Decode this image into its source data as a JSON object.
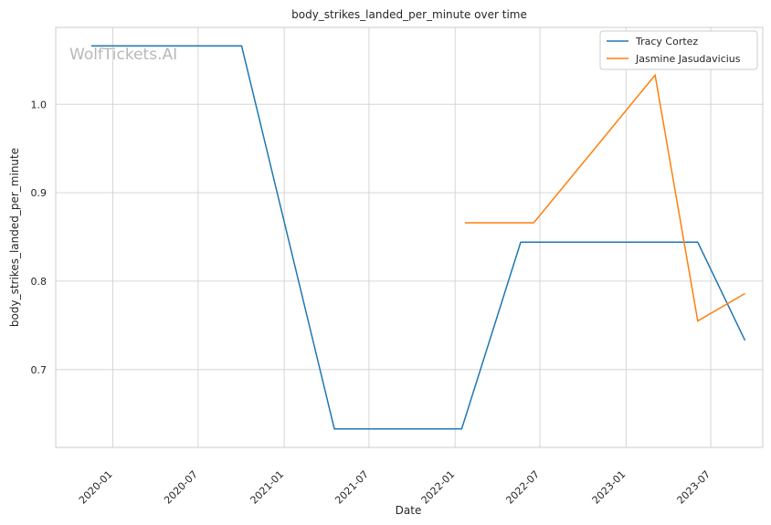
{
  "chart_data": {
    "type": "line",
    "title": "body_strikes_landed_per_minute over time",
    "xlabel": "Date",
    "ylabel": "body_strikes_landed_per_minute",
    "x_ticks": [
      "2020-01",
      "2020-07",
      "2021-01",
      "2021-07",
      "2022-01",
      "2022-07",
      "2023-01",
      "2023-07"
    ],
    "y_ticks": [
      "0.7",
      "0.8",
      "0.9",
      "1.0"
    ],
    "xlim": [
      "2019-09-01",
      "2023-10-20"
    ],
    "ylim": [
      0.612,
      1.087
    ],
    "grid": true,
    "legend_position": "top-right",
    "watermark": "WolfTickets.AI",
    "series": [
      {
        "name": "Tracy Cortez",
        "color": "#1f77b4",
        "points": [
          {
            "x": "2019-11-16",
            "y": 1.066
          },
          {
            "x": "2020-10-02",
            "y": 1.066
          },
          {
            "x": "2021-04-18",
            "y": 0.633
          },
          {
            "x": "2022-01-15",
            "y": 0.633
          },
          {
            "x": "2022-05-21",
            "y": 0.844
          },
          {
            "x": "2023-06-03",
            "y": 0.844
          },
          {
            "x": "2023-09-12",
            "y": 0.733
          }
        ]
      },
      {
        "name": "Jasmine Jasudavicius",
        "color": "#ff7f0e",
        "points": [
          {
            "x": "2022-01-22",
            "y": 0.866
          },
          {
            "x": "2022-06-18",
            "y": 0.866
          },
          {
            "x": "2023-03-04",
            "y": 1.033
          },
          {
            "x": "2023-06-03",
            "y": 0.755
          },
          {
            "x": "2023-09-12",
            "y": 0.786
          }
        ]
      }
    ]
  }
}
